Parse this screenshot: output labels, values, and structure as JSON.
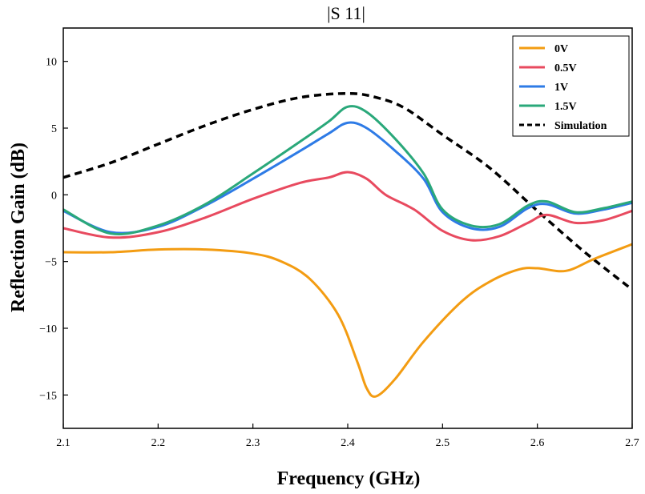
{
  "chart_data": {
    "type": "line",
    "title": "|S 11|",
    "xlabel": "Frequency (GHz)",
    "ylabel": "Reflection Gain (dB)",
    "xlim": [
      2.1,
      2.7
    ],
    "ylim": [
      -17.5,
      12.5
    ],
    "xticks": [
      "2.1",
      "2.2",
      "2.3",
      "2.4",
      "2.5",
      "2.6",
      "2.7"
    ],
    "yticks": [
      "10",
      "5",
      "0",
      "−5",
      "−10",
      "−15"
    ],
    "grid": false,
    "legend_position": "top-right",
    "series": [
      {
        "name": "0V",
        "color": "#f39c12",
        "dash": "solid",
        "x": [
          2.1,
          2.15,
          2.2,
          2.25,
          2.3,
          2.33,
          2.36,
          2.39,
          2.41,
          2.42,
          2.43,
          2.45,
          2.48,
          2.52,
          2.55,
          2.58,
          2.6,
          2.63,
          2.66,
          2.7
        ],
        "y": [
          -4.3,
          -4.3,
          -4.1,
          -4.1,
          -4.4,
          -5.0,
          -6.3,
          -9.0,
          -12.5,
          -14.5,
          -15.1,
          -13.8,
          -11.0,
          -8.0,
          -6.5,
          -5.6,
          -5.5,
          -5.7,
          -4.8,
          -3.7
        ]
      },
      {
        "name": "0.5V",
        "color": "#e84a5f",
        "dash": "solid",
        "x": [
          2.1,
          2.15,
          2.2,
          2.25,
          2.3,
          2.35,
          2.38,
          2.4,
          2.42,
          2.44,
          2.47,
          2.5,
          2.53,
          2.56,
          2.59,
          2.61,
          2.64,
          2.67,
          2.7
        ],
        "y": [
          -2.5,
          -3.2,
          -2.8,
          -1.7,
          -0.3,
          0.9,
          1.3,
          1.7,
          1.2,
          0.0,
          -1.1,
          -2.7,
          -3.4,
          -3.1,
          -2.1,
          -1.5,
          -2.1,
          -1.9,
          -1.2
        ]
      },
      {
        "name": "1V",
        "color": "#2e7be6",
        "dash": "solid",
        "x": [
          2.1,
          2.15,
          2.2,
          2.25,
          2.3,
          2.35,
          2.38,
          2.4,
          2.42,
          2.45,
          2.48,
          2.5,
          2.53,
          2.56,
          2.59,
          2.61,
          2.64,
          2.67,
          2.7
        ],
        "y": [
          -1.2,
          -2.8,
          -2.4,
          -0.8,
          1.2,
          3.3,
          4.6,
          5.4,
          5.0,
          3.3,
          1.2,
          -1.3,
          -2.5,
          -2.4,
          -1.0,
          -0.7,
          -1.4,
          -1.1,
          -0.6
        ]
      },
      {
        "name": "1.5V",
        "color": "#2aa87a",
        "dash": "solid",
        "x": [
          2.1,
          2.15,
          2.2,
          2.25,
          2.3,
          2.35,
          2.38,
          2.4,
          2.42,
          2.45,
          2.48,
          2.5,
          2.53,
          2.56,
          2.59,
          2.61,
          2.64,
          2.67,
          2.7
        ],
        "y": [
          -1.1,
          -2.9,
          -2.3,
          -0.7,
          1.6,
          4.0,
          5.5,
          6.6,
          6.2,
          4.2,
          1.6,
          -1.1,
          -2.3,
          -2.2,
          -0.8,
          -0.5,
          -1.3,
          -1.0,
          -0.5
        ]
      },
      {
        "name": "Simulation",
        "color": "#000000",
        "dash": "dashed",
        "x": [
          2.1,
          2.15,
          2.2,
          2.25,
          2.3,
          2.35,
          2.4,
          2.43,
          2.46,
          2.5,
          2.55,
          2.6,
          2.65,
          2.7
        ],
        "y": [
          1.3,
          2.4,
          3.8,
          5.2,
          6.4,
          7.3,
          7.6,
          7.3,
          6.5,
          4.5,
          2.0,
          -1.2,
          -4.3,
          -7.1
        ]
      }
    ]
  }
}
